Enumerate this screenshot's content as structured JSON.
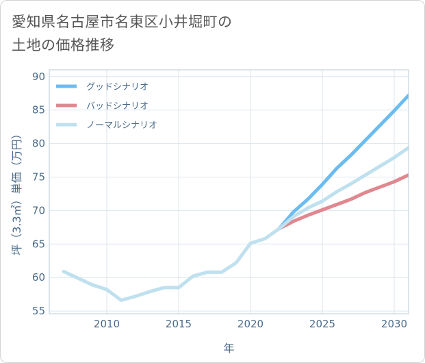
{
  "title_lines": [
    "愛知県名古屋市名東区小井堀町の",
    "土地の価格推移"
  ],
  "chart_data": {
    "type": "line",
    "title": "愛知県名古屋市名東区小井堀町の土地の価格推移",
    "xlabel": "年",
    "ylabel": "坪（3.3㎡）単価（万円）",
    "xlim": [
      2006.0,
      2031.0
    ],
    "ylim": [
      54.6,
      91.0
    ],
    "xticks": [
      2010,
      2015,
      2020,
      2025,
      2030
    ],
    "yticks": [
      55,
      60,
      65,
      70,
      75,
      80,
      85,
      90
    ],
    "grid": true,
    "legend_position": "top-left",
    "series": [
      {
        "name": "グッドシナリオ",
        "color": "#6bbcf0",
        "x": [
          2022,
          2023,
          2024,
          2025,
          2026,
          2027,
          2028,
          2029,
          2030,
          2031
        ],
        "values": [
          67.3,
          69.8,
          71.7,
          73.9,
          76.3,
          78.3,
          80.5,
          82.7,
          84.9,
          87.2
        ]
      },
      {
        "name": "バッドシナリオ",
        "color": "#e0878f",
        "x": [
          2022,
          2023,
          2024,
          2025,
          2026,
          2027,
          2028,
          2029,
          2030,
          2031
        ],
        "values": [
          67.3,
          68.4,
          69.3,
          70.1,
          70.9,
          71.7,
          72.7,
          73.5,
          74.3,
          75.3
        ]
      },
      {
        "name": "ノーマルシナリオ",
        "color": "#bfe0ee",
        "x": [
          2007,
          2008,
          2009,
          2010,
          2011,
          2012,
          2013,
          2014,
          2015,
          2016,
          2017,
          2018,
          2019,
          2020,
          2021,
          2022,
          2023,
          2024,
          2025,
          2026,
          2027,
          2028,
          2029,
          2030,
          2031
        ],
        "values": [
          60.9,
          59.9,
          58.9,
          58.2,
          56.6,
          57.2,
          57.9,
          58.5,
          58.5,
          60.2,
          60.8,
          60.8,
          62.2,
          65.1,
          65.8,
          67.3,
          69.1,
          70.4,
          71.4,
          72.8,
          74.0,
          75.3,
          76.6,
          77.9,
          79.4
        ]
      }
    ]
  }
}
